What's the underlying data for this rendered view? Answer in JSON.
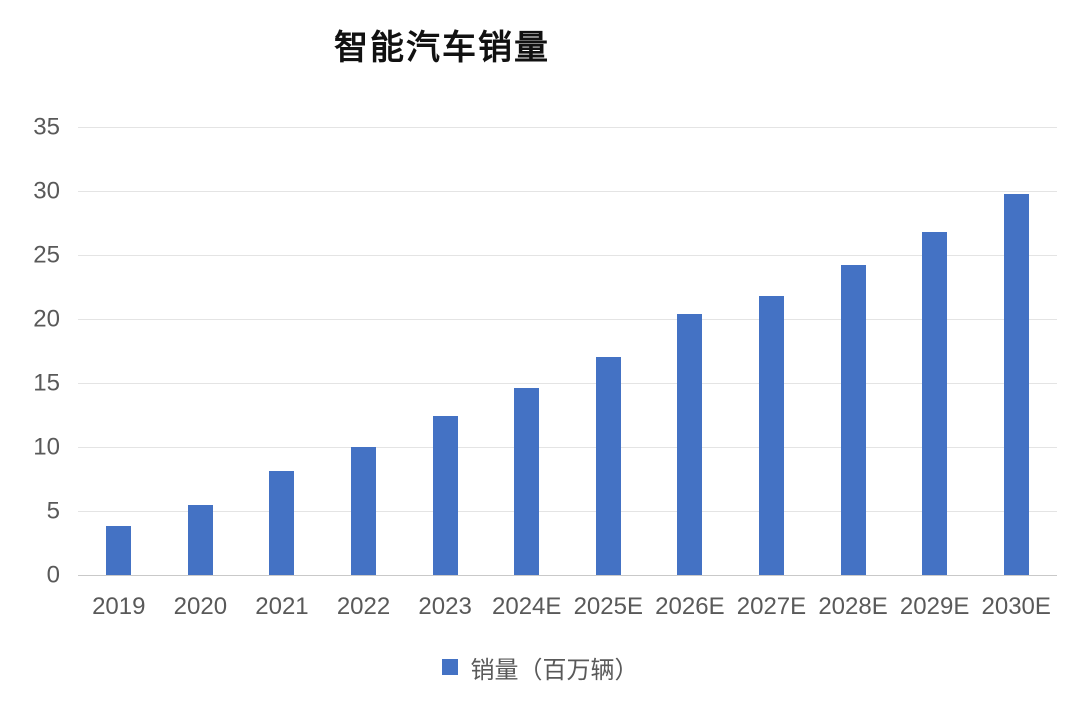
{
  "title": "智能汽车销量",
  "legend": {
    "label": "销量（百万辆）"
  },
  "colors": {
    "bar": "#4472C4",
    "gridline": "#e4e4e4",
    "axis_line": "#c9c9c9",
    "label": "#595959",
    "title": "#111111",
    "background": "#ffffff"
  },
  "chart_data": {
    "type": "bar",
    "title": "智能汽车销量",
    "categories": [
      "2019",
      "2020",
      "2021",
      "2022",
      "2023",
      "2024E",
      "2025E",
      "2026E",
      "2027E",
      "2028E",
      "2029E",
      "2030E"
    ],
    "series": [
      {
        "name": "销量（百万辆）",
        "values": [
          3.8,
          5.5,
          8.1,
          10,
          12.4,
          14.6,
          17,
          20.4,
          21.8,
          24.2,
          26.8,
          29.8
        ]
      }
    ],
    "xlabel": "",
    "ylabel": "",
    "ylim": [
      0,
      35
    ],
    "yticks": [
      0,
      5,
      10,
      15,
      20,
      25,
      30,
      35
    ],
    "grid": true,
    "legend_position": "bottom"
  }
}
